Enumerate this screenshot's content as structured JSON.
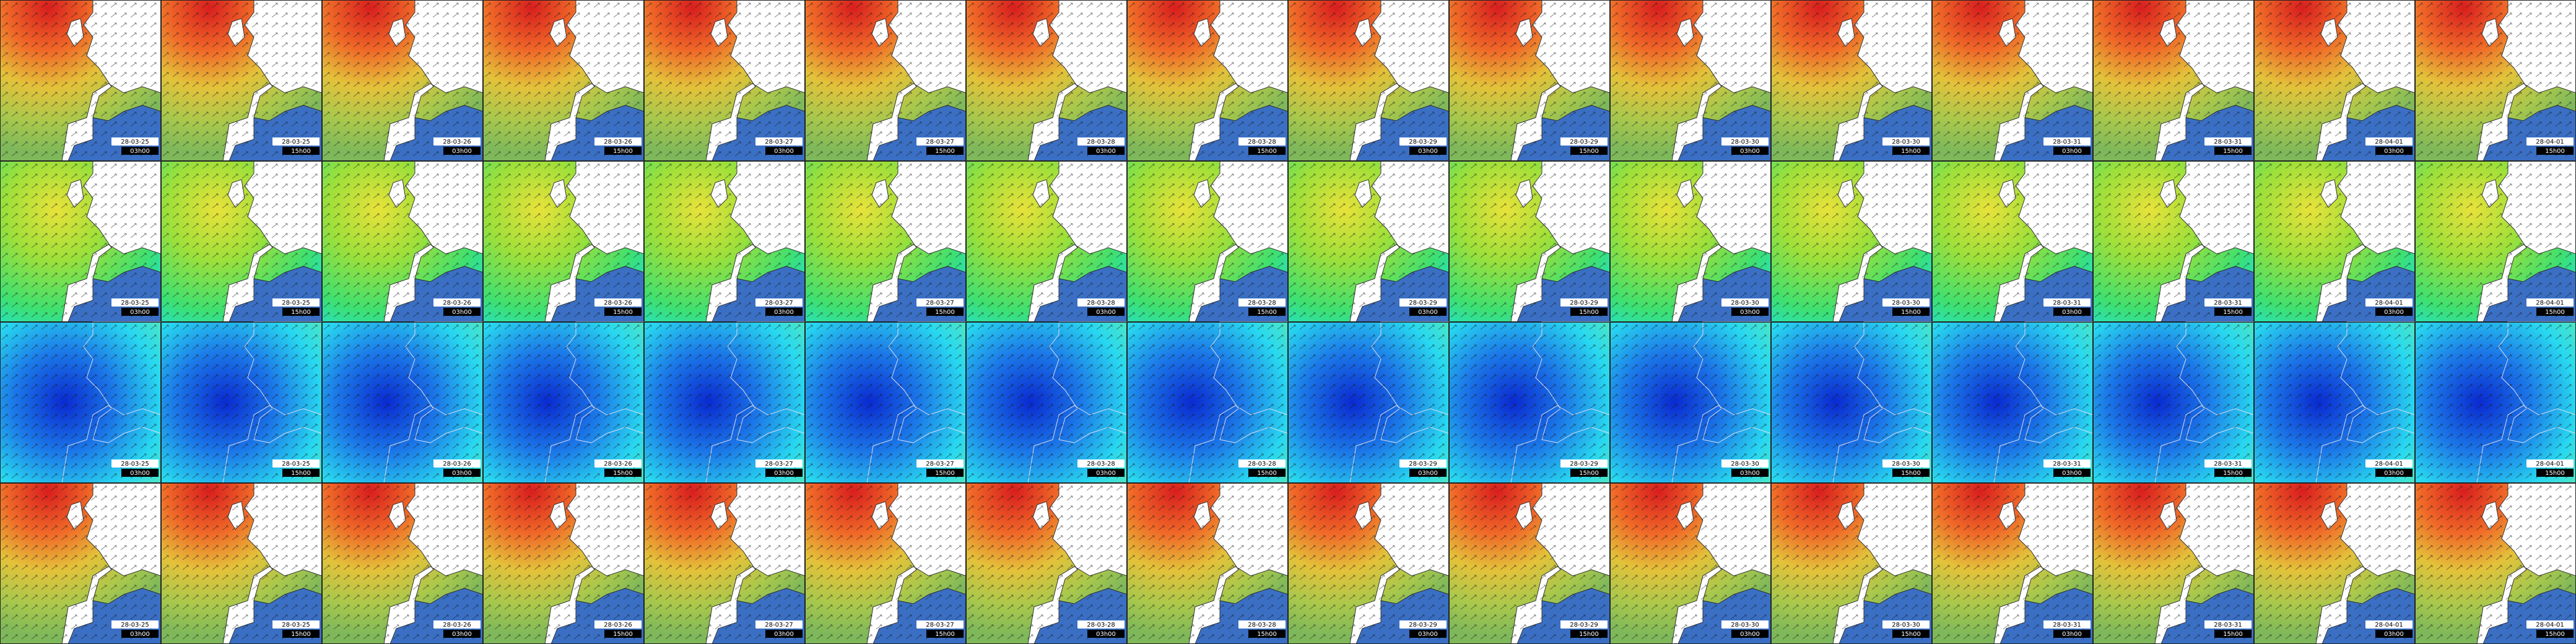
{
  "rows": [
    {
      "dates": [
        "28-03-25",
        "28-03-25",
        "28-03-26",
        "28-03-26",
        "28-03-27",
        "28-03-27",
        "28-03-28",
        "28-03-28",
        "28-03-29",
        "28-03-29",
        "28-03-30",
        "28-03-30",
        "28-03-31",
        "28-03-31",
        "28-04-01",
        "28-04-01"
      ],
      "times": [
        "03h00",
        "15h00",
        "03h00",
        "15h00",
        "03h00",
        "15h00",
        "03h00",
        "15h00",
        "03h00",
        "15h00",
        "03h00",
        "15h00",
        "03h00",
        "15h00",
        "03h00",
        "15h00"
      ]
    },
    {
      "dates": [
        "28-03-25",
        "28-03-25",
        "28-03-26",
        "28-03-26",
        "28-03-27",
        "28-03-27",
        "28-03-28",
        "28-03-28",
        "28-03-29",
        "28-03-29",
        "28-03-30",
        "28-03-30",
        "28-03-31",
        "28-03-31",
        "28-04-01",
        "28-04-01"
      ],
      "times": [
        "03h00",
        "15h00",
        "03h00",
        "15h00",
        "03h00",
        "15h00",
        "03h00",
        "15h00",
        "03h00",
        "15h00",
        "03h00",
        "15h00",
        "03h00",
        "15h00",
        "03h00",
        "15h00"
      ]
    },
    {
      "dates": [
        "28-03-25",
        "28-03-25",
        "28-03-26",
        "28-03-26",
        "28-03-27",
        "28-03-27",
        "28-03-28",
        "28-03-28",
        "28-03-29",
        "28-03-29",
        "28-03-30",
        "28-03-30",
        "28-03-31",
        "28-03-31",
        "28-04-01",
        "28-04-01"
      ],
      "times": [
        "03h00",
        "15h00",
        "03h00",
        "15h00",
        "03h00",
        "15h00",
        "03h00",
        "15h00",
        "03h00",
        "15h00",
        "03h00",
        "15h00",
        "03h00",
        "15h00",
        "03h00",
        "15h00"
      ]
    },
    {
      "dates": [
        "28-03-25",
        "28-03-25",
        "28-03-26",
        "28-03-26",
        "28-03-27",
        "28-03-27",
        "28-03-28",
        "28-03-28",
        "28-03-29",
        "28-03-29",
        "28-03-30",
        "28-03-30",
        "28-03-31",
        "28-03-31",
        "28-04-01",
        "28-04-01"
      ],
      "times": [
        "03h00",
        "15h00",
        "03h00",
        "15h00",
        "03h00",
        "15h00",
        "03h00",
        "15h00",
        "03h00",
        "15h00",
        "03h00",
        "15h00",
        "03h00",
        "15h00",
        "03h00",
        "15h00"
      ]
    }
  ]
}
